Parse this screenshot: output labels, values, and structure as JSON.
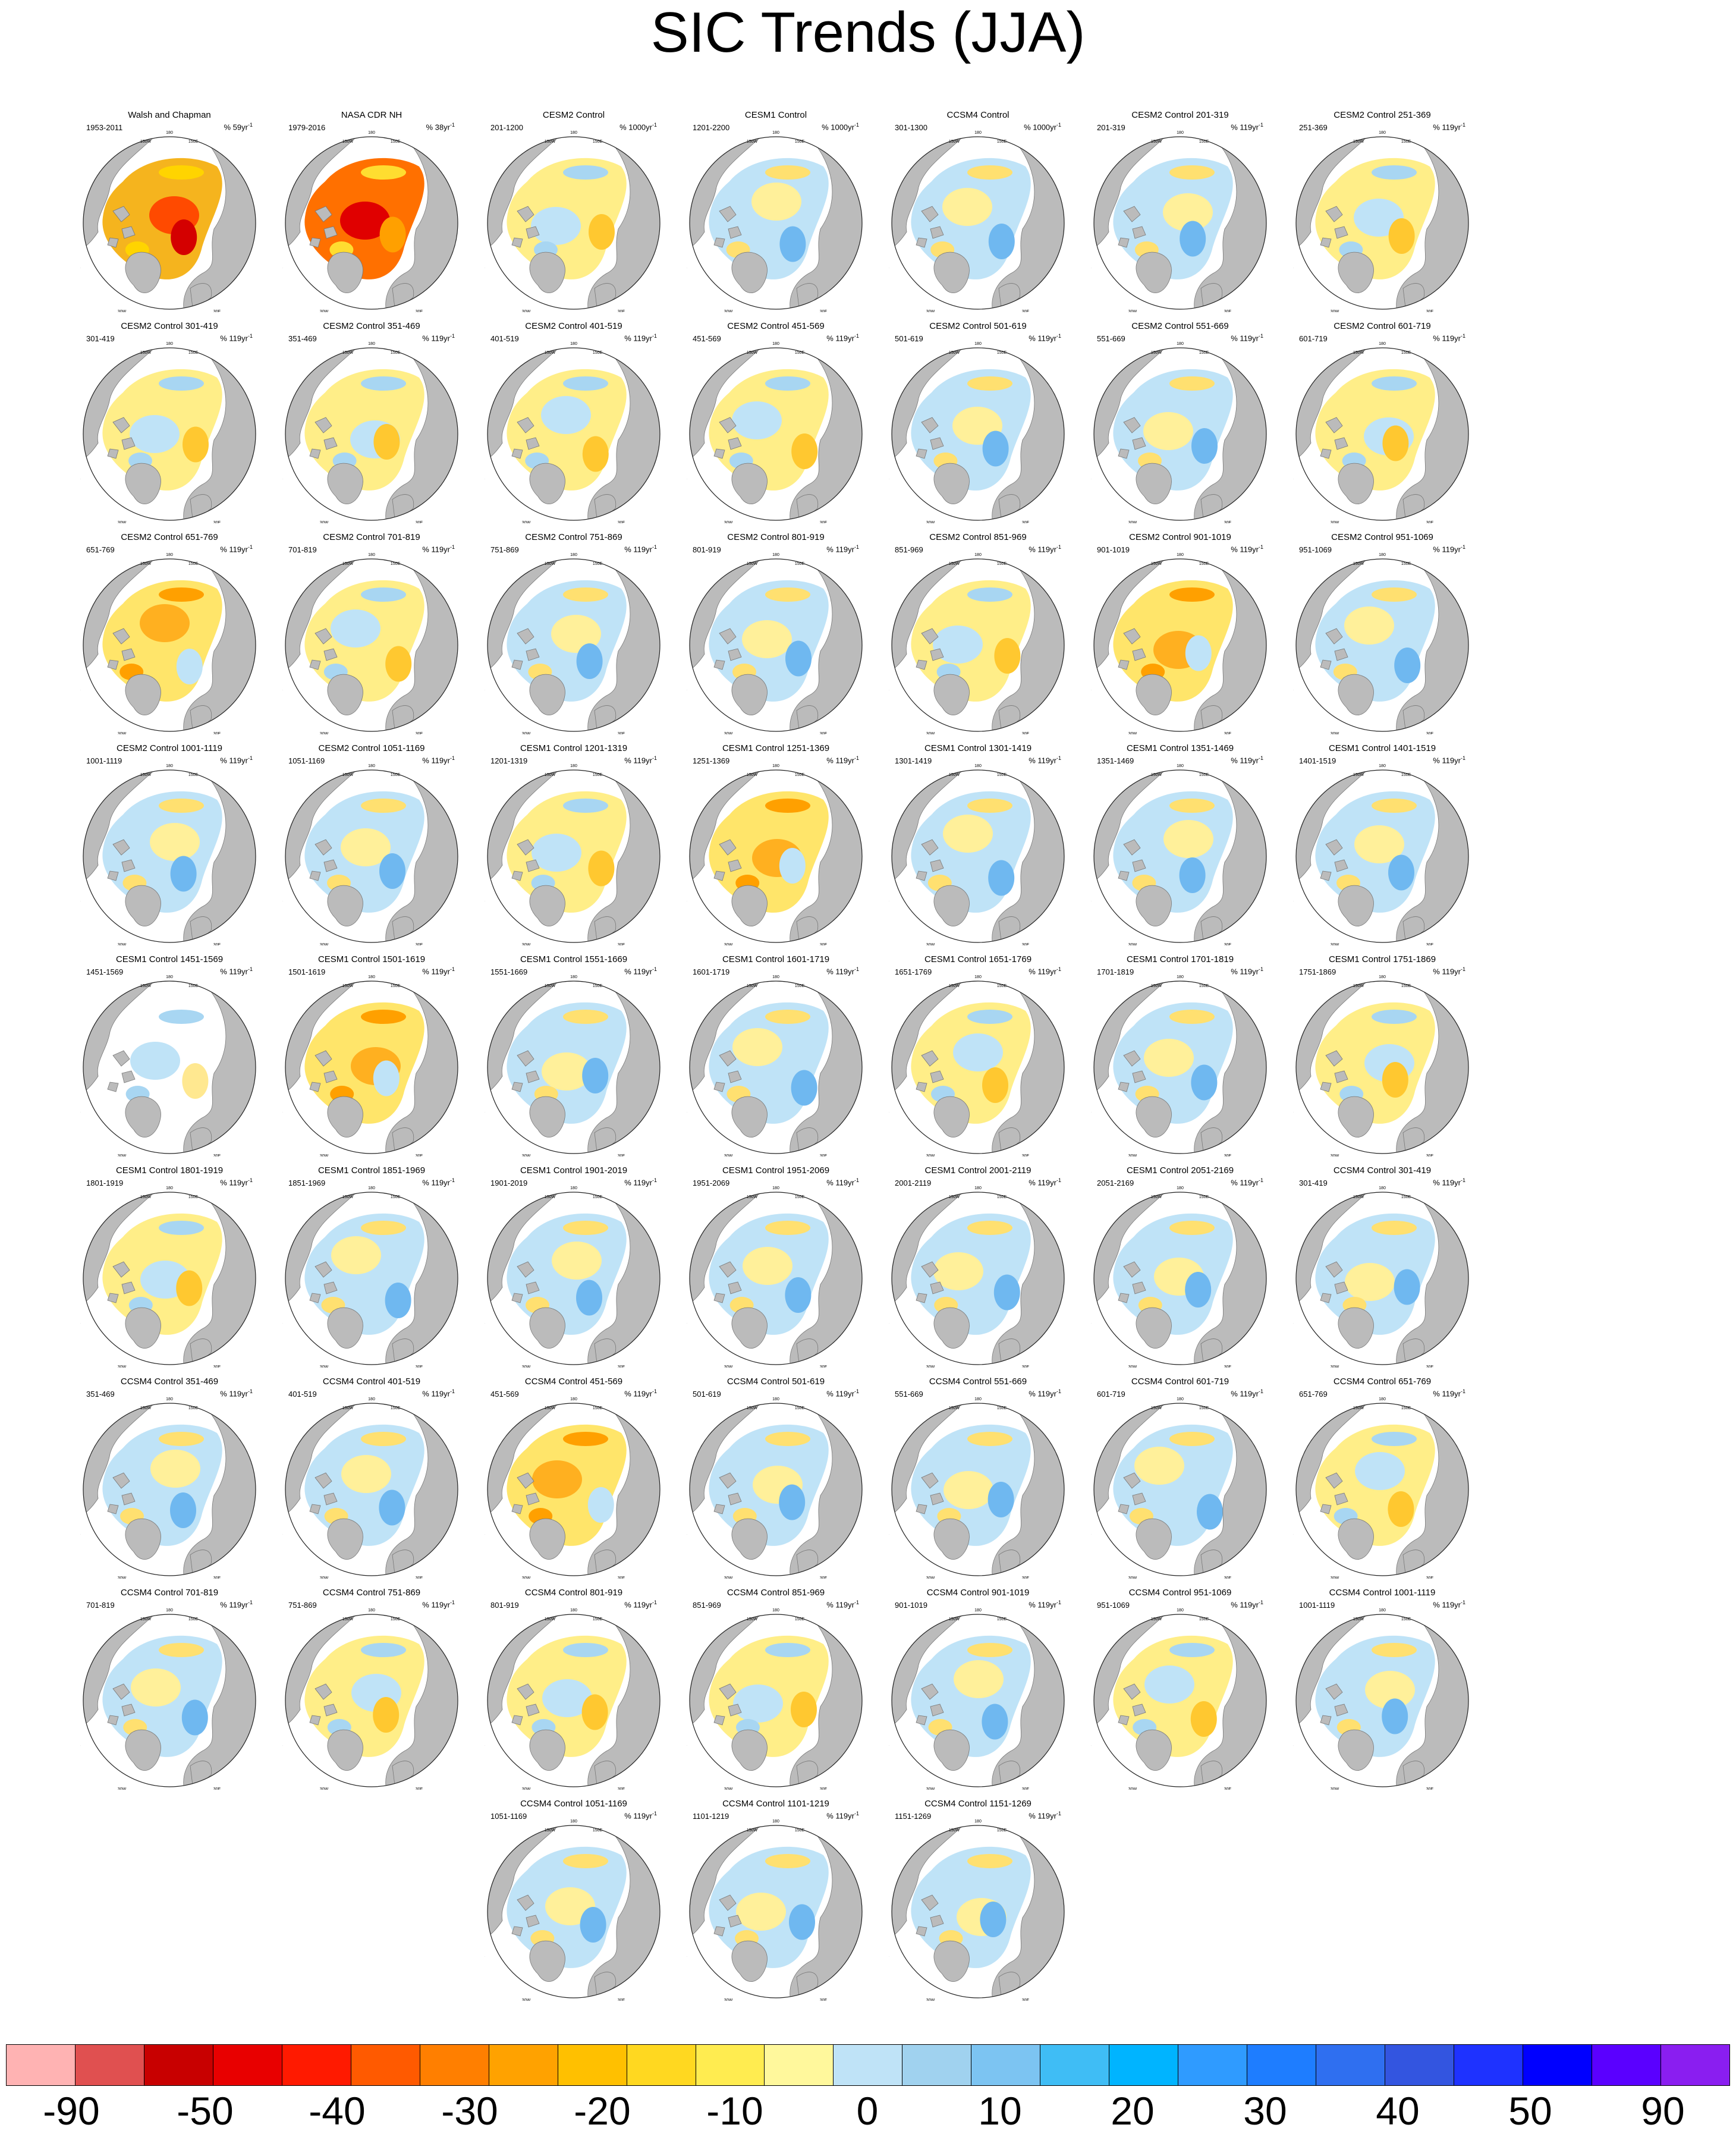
{
  "title": "SIC Trends (JJA)",
  "map_labels": {
    "lon": [
      "180",
      "150W",
      "150E",
      "120W",
      "120E",
      "90W",
      "90E",
      "60W",
      "60E",
      "30W",
      "30E",
      "0"
    ]
  },
  "panels": [
    {
      "title": "Walsh and Chapman",
      "range": "1953-2011",
      "scale": "% 59yr",
      "pattern": "obs1"
    },
    {
      "title": "NASA CDR NH",
      "range": "1979-2016",
      "scale": "% 38yr",
      "pattern": "obs2"
    },
    {
      "title": "CESM2 Control",
      "range": "201-1200",
      "scale": "% 1000yr",
      "pattern": "y"
    },
    {
      "title": "CESM1 Control",
      "range": "1201-2200",
      "scale": "% 1000yr",
      "pattern": "b"
    },
    {
      "title": "CCSM4 Control",
      "range": "301-1300",
      "scale": "% 1000yr",
      "pattern": "b"
    },
    {
      "title": "CESM2 Control 201-319",
      "range": "201-319",
      "scale": "% 119yr",
      "pattern": "b"
    },
    {
      "title": "CESM2 Control 251-369",
      "range": "251-369",
      "scale": "% 119yr",
      "pattern": "y"
    },
    {
      "title": "CESM2 Control 301-419",
      "range": "301-419",
      "scale": "% 119yr",
      "pattern": "y"
    },
    {
      "title": "CESM2 Control 351-469",
      "range": "351-469",
      "scale": "% 119yr",
      "pattern": "y"
    },
    {
      "title": "CESM2 Control 401-519",
      "range": "401-519",
      "scale": "% 119yr",
      "pattern": "y"
    },
    {
      "title": "CESM2 Control 451-569",
      "range": "451-569",
      "scale": "% 119yr",
      "pattern": "y"
    },
    {
      "title": "CESM2 Control 501-619",
      "range": "501-619",
      "scale": "% 119yr",
      "pattern": "b"
    },
    {
      "title": "CESM2 Control 551-669",
      "range": "551-669",
      "scale": "% 119yr",
      "pattern": "b"
    },
    {
      "title": "CESM2 Control 601-719",
      "range": "601-719",
      "scale": "% 119yr",
      "pattern": "y"
    },
    {
      "title": "CESM2 Control 651-769",
      "range": "651-769",
      "scale": "% 119yr",
      "pattern": "o"
    },
    {
      "title": "CESM2 Control 701-819",
      "range": "701-819",
      "scale": "% 119yr",
      "pattern": "y"
    },
    {
      "title": "CESM2 Control 751-869",
      "range": "751-869",
      "scale": "% 119yr",
      "pattern": "b"
    },
    {
      "title": "CESM2 Control 801-919",
      "range": "801-919",
      "scale": "% 119yr",
      "pattern": "b"
    },
    {
      "title": "CESM2 Control 851-969",
      "range": "851-969",
      "scale": "% 119yr",
      "pattern": "y"
    },
    {
      "title": "CESM2 Control 901-1019",
      "range": "901-1019",
      "scale": "% 119yr",
      "pattern": "o"
    },
    {
      "title": "CESM2 Control 951-1069",
      "range": "951-1069",
      "scale": "% 119yr",
      "pattern": "b"
    },
    {
      "title": "CESM2 Control 1001-1119",
      "range": "1001-1119",
      "scale": "% 119yr",
      "pattern": "b"
    },
    {
      "title": "CESM2 Control 1051-1169",
      "range": "1051-1169",
      "scale": "% 119yr",
      "pattern": "b"
    },
    {
      "title": "CESM1 Control 1201-1319",
      "range": "1201-1319",
      "scale": "% 119yr",
      "pattern": "y"
    },
    {
      "title": "CESM1 Control 1251-1369",
      "range": "1251-1369",
      "scale": "% 119yr",
      "pattern": "o"
    },
    {
      "title": "CESM1 Control 1301-1419",
      "range": "1301-1419",
      "scale": "% 119yr",
      "pattern": "b"
    },
    {
      "title": "CESM1 Control 1351-1469",
      "range": "1351-1469",
      "scale": "% 119yr",
      "pattern": "b"
    },
    {
      "title": "CESM1 Control 1401-1519",
      "range": "1401-1519",
      "scale": "% 119yr",
      "pattern": "b"
    },
    {
      "title": "CESM1 Control 1451-1569",
      "range": "1451-1569",
      "scale": "% 119yr",
      "pattern": "w"
    },
    {
      "title": "CESM1 Control 1501-1619",
      "range": "1501-1619",
      "scale": "% 119yr",
      "pattern": "o"
    },
    {
      "title": "CESM1 Control 1551-1669",
      "range": "1551-1669",
      "scale": "% 119yr",
      "pattern": "b"
    },
    {
      "title": "CESM1 Control 1601-1719",
      "range": "1601-1719",
      "scale": "% 119yr",
      "pattern": "b"
    },
    {
      "title": "CESM1 Control 1651-1769",
      "range": "1651-1769",
      "scale": "% 119yr",
      "pattern": "y"
    },
    {
      "title": "CESM1 Control 1701-1819",
      "range": "1701-1819",
      "scale": "% 119yr",
      "pattern": "b"
    },
    {
      "title": "CESM1 Control 1751-1869",
      "range": "1751-1869",
      "scale": "% 119yr",
      "pattern": "y"
    },
    {
      "title": "CESM1 Control 1801-1919",
      "range": "1801-1919",
      "scale": "% 119yr",
      "pattern": "y"
    },
    {
      "title": "CESM1 Control 1851-1969",
      "range": "1851-1969",
      "scale": "% 119yr",
      "pattern": "b"
    },
    {
      "title": "CESM1 Control 1901-2019",
      "range": "1901-2019",
      "scale": "% 119yr",
      "pattern": "b"
    },
    {
      "title": "CESM1 Control 1951-2069",
      "range": "1951-2069",
      "scale": "% 119yr",
      "pattern": "b"
    },
    {
      "title": "CESM1 Control 2001-2119",
      "range": "2001-2119",
      "scale": "% 119yr",
      "pattern": "b"
    },
    {
      "title": "CESM1 Control 2051-2169",
      "range": "2051-2169",
      "scale": "% 119yr",
      "pattern": "b"
    },
    {
      "title": "CCSM4 Control 301-419",
      "range": "301-419",
      "scale": "% 119yr",
      "pattern": "b"
    },
    {
      "title": "CCSM4 Control 351-469",
      "range": "351-469",
      "scale": "% 119yr",
      "pattern": "b"
    },
    {
      "title": "CCSM4 Control 401-519",
      "range": "401-519",
      "scale": "% 119yr",
      "pattern": "b"
    },
    {
      "title": "CCSM4 Control 451-569",
      "range": "451-569",
      "scale": "% 119yr",
      "pattern": "o"
    },
    {
      "title": "CCSM4 Control 501-619",
      "range": "501-619",
      "scale": "% 119yr",
      "pattern": "b"
    },
    {
      "title": "CCSM4 Control 551-669",
      "range": "551-669",
      "scale": "% 119yr",
      "pattern": "b"
    },
    {
      "title": "CCSM4 Control 601-719",
      "range": "601-719",
      "scale": "% 119yr",
      "pattern": "b"
    },
    {
      "title": "CCSM4 Control 651-769",
      "range": "651-769",
      "scale": "% 119yr",
      "pattern": "y"
    },
    {
      "title": "CCSM4 Control 701-819",
      "range": "701-819",
      "scale": "% 119yr",
      "pattern": "b"
    },
    {
      "title": "CCSM4 Control 751-869",
      "range": "751-869",
      "scale": "% 119yr",
      "pattern": "y"
    },
    {
      "title": "CCSM4 Control 801-919",
      "range": "801-919",
      "scale": "% 119yr",
      "pattern": "y"
    },
    {
      "title": "CCSM4 Control 851-969",
      "range": "851-969",
      "scale": "% 119yr",
      "pattern": "y"
    },
    {
      "title": "CCSM4 Control 901-1019",
      "range": "901-1019",
      "scale": "% 119yr",
      "pattern": "b"
    },
    {
      "title": "CCSM4 Control 951-1069",
      "range": "951-1069",
      "scale": "% 119yr",
      "pattern": "y"
    },
    {
      "title": "CCSM4 Control 1001-1119",
      "range": "1001-1119",
      "scale": "% 119yr",
      "pattern": "b"
    },
    {
      "title": "CCSM4 Control 1051-1169",
      "range": "1051-1169",
      "scale": "% 119yr",
      "pattern": "b"
    },
    {
      "title": "CCSM4 Control 1101-1219",
      "range": "1101-1219",
      "scale": "% 119yr",
      "pattern": "b"
    },
    {
      "title": "CCSM4 Control 1151-1269",
      "range": "1151-1269",
      "scale": "% 119yr",
      "pattern": "b"
    }
  ],
  "colorbar": {
    "colors": [
      "#ffb3b3",
      "#e05050",
      "#c80000",
      "#e80000",
      "#ff1a00",
      "#ff5a00",
      "#ff7f00",
      "#ffa200",
      "#ffc000",
      "#ffd820",
      "#ffec50",
      "#fff89c",
      "#bfe3f7",
      "#a0d2ef",
      "#7cc4f2",
      "#3fbdf5",
      "#00b4ff",
      "#2f9bff",
      "#1e7dff",
      "#2f6ff0",
      "#3355e0",
      "#1e32ff",
      "#0000ff",
      "#5a00ff",
      "#8a1ef0"
    ],
    "tick_labels": [
      "-90",
      "-50",
      "-40",
      "-30",
      "-20",
      "-10",
      "0",
      "10",
      "20",
      "30",
      "40",
      "50",
      "90"
    ]
  }
}
